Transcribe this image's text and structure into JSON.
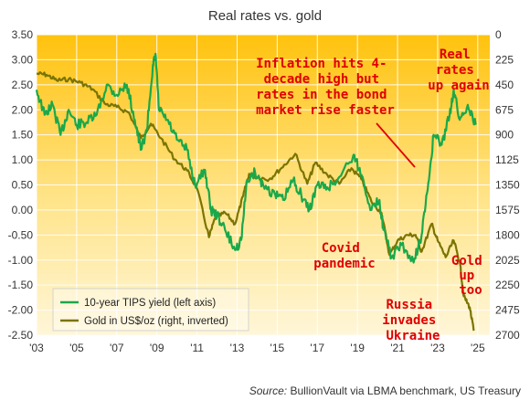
{
  "chart_data": {
    "type": "line",
    "title": "Real rates vs. gold",
    "source_label": "Source:",
    "source_text": "BullionVault via LBMA benchmark, US Treasury",
    "x_ticks": [
      "'03",
      "'05",
      "'07",
      "'09",
      "'11",
      "'13",
      "'15",
      "'17",
      "'19",
      "'21",
      "'23",
      "'25"
    ],
    "xlim": [
      2003,
      2025.6
    ],
    "left_axis": {
      "ylim": [
        -2.5,
        3.5
      ],
      "ticks": [
        "3.50",
        "3.00",
        "2.50",
        "2.00",
        "1.50",
        "1.00",
        "0.50",
        "0.00",
        "-0.50",
        "-1.00",
        "-1.50",
        "-2.00",
        "-2.50"
      ]
    },
    "right_axis": {
      "ylim": [
        0,
        2700
      ],
      "inverted": true,
      "ticks": [
        "0",
        "225",
        "450",
        "675",
        "900",
        "1125",
        "1350",
        "1575",
        "1800",
        "2025",
        "2250",
        "2475",
        "2700"
      ]
    },
    "series": [
      {
        "name": "10-year TIPS yield (left axis)",
        "color": "#1aa84a",
        "axis": "left",
        "points": [
          [
            2003.0,
            2.4
          ],
          [
            2003.4,
            1.9
          ],
          [
            2003.8,
            2.1
          ],
          [
            2004.2,
            1.5
          ],
          [
            2004.6,
            2.0
          ],
          [
            2005.0,
            1.7
          ],
          [
            2005.5,
            1.75
          ],
          [
            2006.0,
            1.9
          ],
          [
            2006.5,
            2.5
          ],
          [
            2007.0,
            2.3
          ],
          [
            2007.5,
            2.5
          ],
          [
            2007.9,
            1.8
          ],
          [
            2008.2,
            1.2
          ],
          [
            2008.5,
            1.6
          ],
          [
            2008.8,
            2.9
          ],
          [
            2008.95,
            3.05
          ],
          [
            2009.1,
            2.0
          ],
          [
            2009.5,
            1.8
          ],
          [
            2010.0,
            1.4
          ],
          [
            2010.5,
            1.2
          ],
          [
            2010.9,
            0.5
          ],
          [
            2011.4,
            0.8
          ],
          [
            2011.7,
            0.0
          ],
          [
            2012.0,
            -0.1
          ],
          [
            2012.4,
            -0.4
          ],
          [
            2012.9,
            -0.8
          ],
          [
            2013.2,
            -0.6
          ],
          [
            2013.5,
            0.6
          ],
          [
            2013.9,
            0.75
          ],
          [
            2014.3,
            0.5
          ],
          [
            2014.9,
            0.3
          ],
          [
            2015.3,
            0.2
          ],
          [
            2015.8,
            0.6
          ],
          [
            2016.2,
            0.3
          ],
          [
            2016.6,
            0.0
          ],
          [
            2017.0,
            0.5
          ],
          [
            2017.5,
            0.45
          ],
          [
            2018.0,
            0.6
          ],
          [
            2018.8,
            1.1
          ],
          [
            2019.2,
            0.7
          ],
          [
            2019.7,
            0.0
          ],
          [
            2020.1,
            0.2
          ],
          [
            2020.3,
            -0.4
          ],
          [
            2020.7,
            -0.95
          ],
          [
            2021.2,
            -0.7
          ],
          [
            2021.8,
            -1.05
          ],
          [
            2022.2,
            -0.5
          ],
          [
            2022.5,
            0.4
          ],
          [
            2022.8,
            1.5
          ],
          [
            2023.2,
            1.3
          ],
          [
            2023.6,
            1.9
          ],
          [
            2023.8,
            2.4
          ],
          [
            2024.1,
            1.8
          ],
          [
            2024.5,
            2.1
          ],
          [
            2024.9,
            1.7
          ]
        ]
      },
      {
        "name": "Gold in US$/oz (right, inverted)",
        "color": "#7a7400",
        "axis": "right",
        "points": [
          [
            2003.0,
            350
          ],
          [
            2003.5,
            360
          ],
          [
            2004.0,
            410
          ],
          [
            2004.6,
            400
          ],
          [
            2005.2,
            430
          ],
          [
            2005.8,
            490
          ],
          [
            2006.4,
            620
          ],
          [
            2007.0,
            650
          ],
          [
            2007.6,
            700
          ],
          [
            2008.2,
            930
          ],
          [
            2008.7,
            800
          ],
          [
            2009.2,
            930
          ],
          [
            2009.9,
            1120
          ],
          [
            2010.5,
            1220
          ],
          [
            2011.0,
            1380
          ],
          [
            2011.6,
            1820
          ],
          [
            2011.9,
            1650
          ],
          [
            2012.4,
            1600
          ],
          [
            2012.9,
            1700
          ],
          [
            2013.3,
            1450
          ],
          [
            2013.6,
            1250
          ],
          [
            2014.0,
            1280
          ],
          [
            2014.6,
            1300
          ],
          [
            2015.2,
            1200
          ],
          [
            2015.9,
            1070
          ],
          [
            2016.5,
            1340
          ],
          [
            2016.9,
            1150
          ],
          [
            2017.5,
            1260
          ],
          [
            2018.1,
            1340
          ],
          [
            2018.7,
            1200
          ],
          [
            2019.2,
            1300
          ],
          [
            2019.7,
            1500
          ],
          [
            2020.2,
            1600
          ],
          [
            2020.6,
            1980
          ],
          [
            2021.0,
            1850
          ],
          [
            2021.5,
            1800
          ],
          [
            2021.9,
            1800
          ],
          [
            2022.2,
            1950
          ],
          [
            2022.7,
            1700
          ],
          [
            2023.0,
            1850
          ],
          [
            2023.4,
            2000
          ],
          [
            2023.8,
            1850
          ],
          [
            2024.1,
            2040
          ],
          [
            2024.3,
            2350
          ],
          [
            2024.6,
            2450
          ],
          [
            2024.8,
            2660
          ]
        ]
      }
    ],
    "annotations": [
      {
        "lines": [
          "Inflation hits 4-",
          "decade high but",
          "rates in the bond",
          "market rise faster"
        ]
      },
      {
        "lines": [
          "Real",
          "rates",
          "up again"
        ]
      },
      {
        "lines": [
          "Covid",
          "pandemic"
        ]
      },
      {
        "lines": [
          "Gold",
          "up",
          "too"
        ]
      },
      {
        "lines": [
          "Russia",
          "invades",
          "Ukraine"
        ]
      }
    ],
    "legend_position": "bottom-left",
    "grid": true
  }
}
